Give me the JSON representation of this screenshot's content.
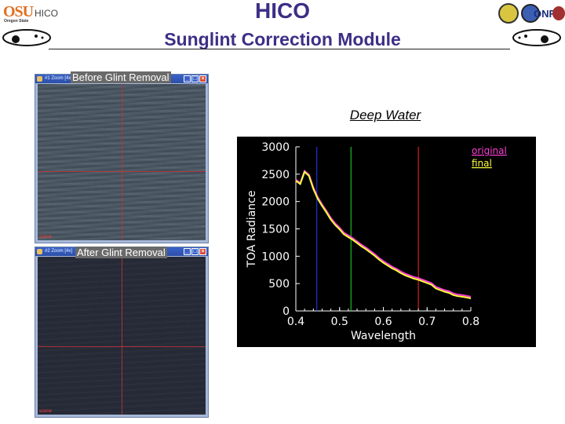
{
  "header": {
    "title": "HICO",
    "subtitle": "Sunglint Correction Module",
    "logo_left": {
      "mark": "OSU",
      "mark_sub": "Oregon State",
      "name": "HICO"
    },
    "logo_right": {
      "name": "ONR"
    }
  },
  "windows": [
    {
      "id": "before",
      "title": "#1 Zoom [4x]",
      "overlay_label": "Before Glint Removal",
      "buttons": [
        "_",
        "□",
        "×"
      ],
      "corner_tag": "scene"
    },
    {
      "id": "after",
      "title": "#2 Zoom [4x]",
      "overlay_label": "After Glint Removal",
      "buttons": [
        "_",
        "□",
        "×"
      ],
      "corner_tag": "scene"
    }
  ],
  "chart_heading": "Deep Water",
  "chart_data": {
    "type": "line",
    "title": "Deep Water",
    "xlabel": "Wavelength",
    "ylabel": "TOA Radiance",
    "xlim": [
      0.4,
      0.8
    ],
    "ylim": [
      0,
      3000
    ],
    "x_ticks": [
      "0.4",
      "0.5",
      "0.6",
      "0.7",
      "0.8"
    ],
    "y_ticks": [
      "0",
      "500",
      "1000",
      "1500",
      "2000",
      "2500",
      "3000"
    ],
    "legend": {
      "position": "top-right",
      "entries": [
        "original",
        "final"
      ]
    },
    "background": "#000000",
    "axis_color": "#ffffff",
    "series": [
      {
        "name": "original",
        "color": "#ff3fd8",
        "points": [
          [
            0.4,
            2400
          ],
          [
            0.41,
            2340
          ],
          [
            0.42,
            2560
          ],
          [
            0.43,
            2490
          ],
          [
            0.44,
            2260
          ],
          [
            0.45,
            2080
          ],
          [
            0.46,
            1950
          ],
          [
            0.47,
            1830
          ],
          [
            0.48,
            1700
          ],
          [
            0.49,
            1600
          ],
          [
            0.5,
            1520
          ],
          [
            0.51,
            1430
          ],
          [
            0.52,
            1380
          ],
          [
            0.53,
            1330
          ],
          [
            0.54,
            1270
          ],
          [
            0.55,
            1210
          ],
          [
            0.56,
            1160
          ],
          [
            0.57,
            1100
          ],
          [
            0.58,
            1040
          ],
          [
            0.59,
            970
          ],
          [
            0.6,
            910
          ],
          [
            0.61,
            860
          ],
          [
            0.62,
            810
          ],
          [
            0.63,
            770
          ],
          [
            0.64,
            720
          ],
          [
            0.65,
            680
          ],
          [
            0.66,
            650
          ],
          [
            0.67,
            620
          ],
          [
            0.68,
            600
          ],
          [
            0.69,
            570
          ],
          [
            0.7,
            540
          ],
          [
            0.71,
            510
          ],
          [
            0.72,
            440
          ],
          [
            0.73,
            410
          ],
          [
            0.74,
            380
          ],
          [
            0.75,
            360
          ],
          [
            0.76,
            320
          ],
          [
            0.77,
            300
          ],
          [
            0.78,
            290
          ],
          [
            0.79,
            275
          ],
          [
            0.8,
            260
          ]
        ]
      },
      {
        "name": "final",
        "color": "#ffff3a",
        "points": [
          [
            0.4,
            2380
          ],
          [
            0.41,
            2320
          ],
          [
            0.42,
            2540
          ],
          [
            0.43,
            2470
          ],
          [
            0.44,
            2230
          ],
          [
            0.45,
            2050
          ],
          [
            0.46,
            1920
          ],
          [
            0.47,
            1800
          ],
          [
            0.48,
            1670
          ],
          [
            0.49,
            1570
          ],
          [
            0.5,
            1490
          ],
          [
            0.51,
            1400
          ],
          [
            0.52,
            1350
          ],
          [
            0.53,
            1300
          ],
          [
            0.54,
            1240
          ],
          [
            0.55,
            1180
          ],
          [
            0.56,
            1130
          ],
          [
            0.57,
            1070
          ],
          [
            0.58,
            1010
          ],
          [
            0.59,
            940
          ],
          [
            0.6,
            880
          ],
          [
            0.61,
            830
          ],
          [
            0.62,
            780
          ],
          [
            0.63,
            740
          ],
          [
            0.64,
            690
          ],
          [
            0.65,
            650
          ],
          [
            0.66,
            620
          ],
          [
            0.67,
            590
          ],
          [
            0.68,
            570
          ],
          [
            0.69,
            540
          ],
          [
            0.7,
            510
          ],
          [
            0.71,
            480
          ],
          [
            0.72,
            410
          ],
          [
            0.73,
            380
          ],
          [
            0.74,
            350
          ],
          [
            0.75,
            330
          ],
          [
            0.76,
            290
          ],
          [
            0.77,
            270
          ],
          [
            0.78,
            260
          ],
          [
            0.79,
            245
          ],
          [
            0.8,
            230
          ]
        ]
      }
    ],
    "band_lines": [
      {
        "x": 0.448,
        "color": "#2a3cff"
      },
      {
        "x": 0.526,
        "color": "#22e02a"
      },
      {
        "x": 0.68,
        "color": "#ff2a2a"
      }
    ]
  }
}
